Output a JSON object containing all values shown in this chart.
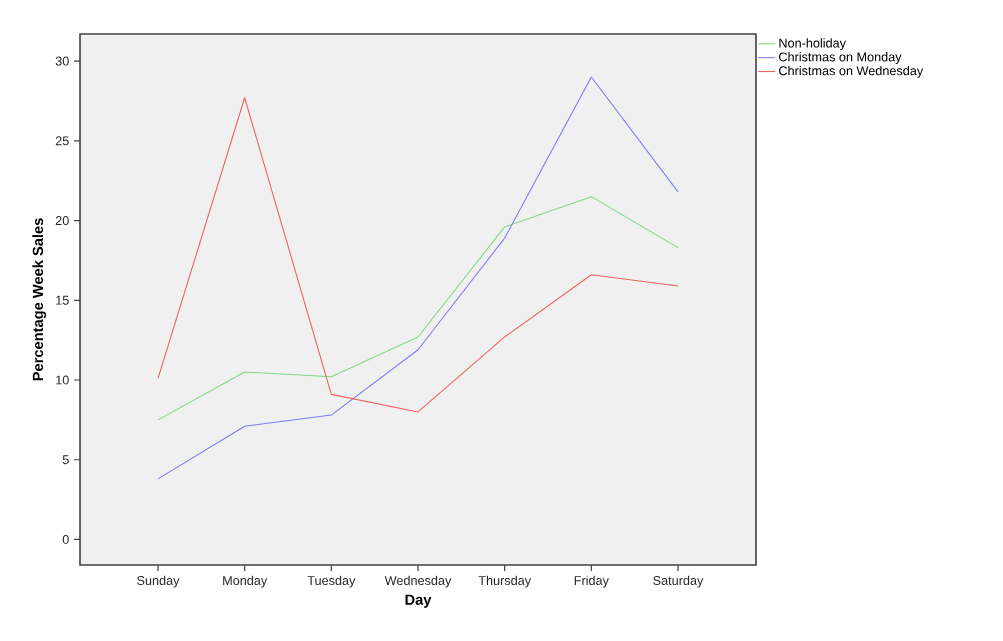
{
  "chart_data": {
    "type": "line",
    "xlabel": "Day",
    "ylabel": "Percentage Week Sales",
    "categories": [
      "Sunday",
      "Monday",
      "Tuesday",
      "Wednesday",
      "Thursday",
      "Friday",
      "Saturday"
    ],
    "series": [
      {
        "name": "Non-holiday",
        "color": "#7fd97f",
        "values": [
          7.5,
          10.5,
          10.2,
          12.7,
          19.6,
          21.5,
          18.3
        ]
      },
      {
        "name": "Christmas on Monday",
        "color": "#7b7bf5",
        "values": [
          3.8,
          7.1,
          7.8,
          11.9,
          18.9,
          29.0,
          21.8
        ]
      },
      {
        "name": "Christmas on Wednesday",
        "color": "#f06060",
        "values": [
          10.1,
          27.7,
          9.1,
          8.0,
          12.7,
          16.6,
          15.9
        ]
      }
    ],
    "ylim": [
      -1.6,
      31.7
    ],
    "yticks": [
      0,
      5,
      10,
      15,
      20,
      25,
      30
    ],
    "grid": false,
    "legend": "top right",
    "marker": "none",
    "line_style": "solid"
  }
}
